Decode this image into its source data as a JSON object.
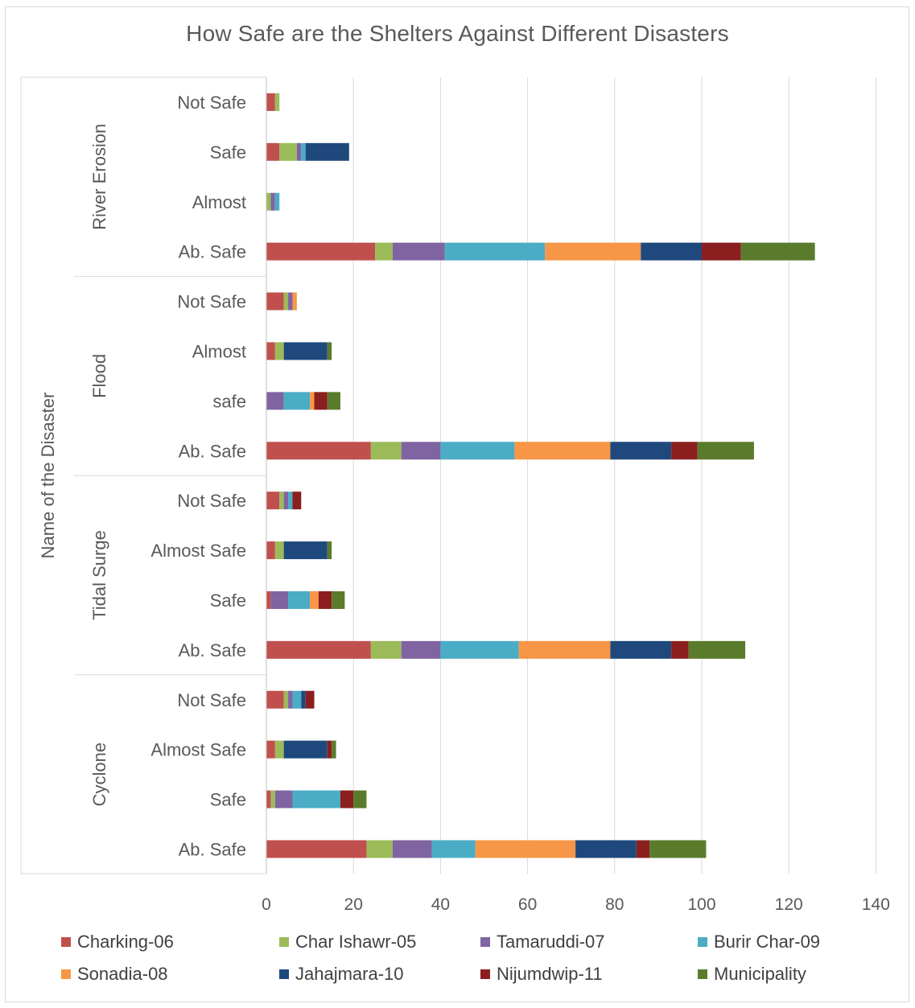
{
  "chart_data": {
    "type": "bar",
    "orientation": "horizontal",
    "stacked": true,
    "title": "How Safe are the Shelters Against Different Disasters",
    "ylabel": "Name of the Disaster",
    "xlabel": "",
    "xlim": [
      0,
      140
    ],
    "xticks": [
      0,
      20,
      40,
      60,
      80,
      100,
      120,
      140
    ],
    "grid": "vertical",
    "legend_position": "bottom",
    "series": [
      {
        "name": "Charking-06",
        "color": "#c0504d"
      },
      {
        "name": "Char Ishawr-05",
        "color": "#9bbb59"
      },
      {
        "name": "Tamaruddi-07",
        "color": "#8064a2"
      },
      {
        "name": "Burir Char-09",
        "color": "#4bacc6"
      },
      {
        "name": "Sonadia-08",
        "color": "#f79646"
      },
      {
        "name": "Jahajmara-10",
        "color": "#1f497d"
      },
      {
        "name": "Nijumdwip-11",
        "color": "#8b1e1e"
      },
      {
        "name": "Municipality",
        "color": "#5a7b2c"
      }
    ],
    "groups": [
      {
        "name": "River Erosion",
        "categories": [
          {
            "label": "Not Safe",
            "values": [
              2,
              1,
              0,
              0,
              0,
              0,
              0,
              0
            ]
          },
          {
            "label": "Safe",
            "values": [
              3,
              4,
              1,
              1,
              0,
              10,
              0,
              0
            ]
          },
          {
            "label": "Almost",
            "values": [
              0,
              1,
              1,
              1,
              0,
              0,
              0,
              0
            ]
          },
          {
            "label": "Ab. Safe",
            "values": [
              25,
              4,
              12,
              23,
              22,
              14,
              9,
              17
            ]
          }
        ]
      },
      {
        "name": "Flood",
        "categories": [
          {
            "label": "Not Safe",
            "values": [
              4,
              1,
              1,
              0,
              1,
              0,
              0,
              0
            ]
          },
          {
            "label": "Almost",
            "values": [
              2,
              2,
              0,
              0,
              0,
              10,
              0,
              1
            ]
          },
          {
            "label": "safe",
            "values": [
              0,
              0,
              4,
              6,
              1,
              0,
              3,
              3
            ]
          },
          {
            "label": "Ab. Safe",
            "values": [
              24,
              7,
              9,
              17,
              22,
              14,
              6,
              13
            ]
          }
        ]
      },
      {
        "name": "Tidal Surge",
        "categories": [
          {
            "label": "Not Safe",
            "values": [
              3,
              1,
              1,
              1,
              0,
              0,
              2,
              0
            ]
          },
          {
            "label": "Almost Safe",
            "values": [
              2,
              2,
              0,
              0,
              0,
              10,
              0,
              1
            ]
          },
          {
            "label": "Safe",
            "values": [
              1,
              0,
              4,
              5,
              2,
              0,
              3,
              3
            ]
          },
          {
            "label": "Ab. Safe",
            "values": [
              24,
              7,
              9,
              18,
              21,
              14,
              4,
              13
            ]
          }
        ]
      },
      {
        "name": "Cyclone",
        "categories": [
          {
            "label": "Not Safe",
            "values": [
              4,
              1,
              1,
              2,
              0,
              1,
              2,
              0
            ]
          },
          {
            "label": "Almost Safe",
            "values": [
              2,
              2,
              0,
              0,
              0,
              10,
              1,
              1
            ]
          },
          {
            "label": "Safe",
            "values": [
              1,
              1,
              4,
              11,
              0,
              0,
              3,
              3
            ]
          },
          {
            "label": "Ab. Safe",
            "values": [
              23,
              6,
              9,
              10,
              23,
              14,
              3,
              13
            ]
          }
        ]
      }
    ]
  }
}
